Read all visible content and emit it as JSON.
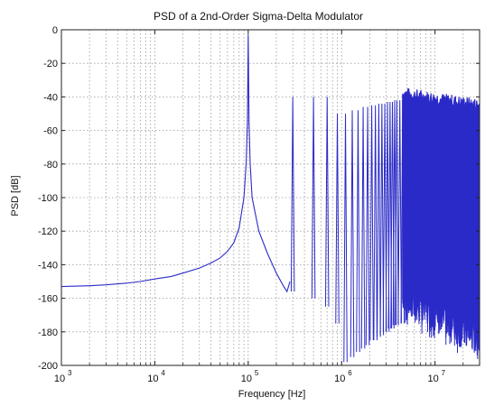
{
  "chart_data": {
    "type": "line",
    "title": "PSD of a 2nd-Order Sigma-Delta Modulator",
    "xlabel": "Frequency [Hz]",
    "ylabel": "PSD [dB]",
    "xscale": "log",
    "xlim": [
      1000,
      30000000
    ],
    "ylim": [
      -200,
      0
    ],
    "grid": true,
    "grid_style": "dotted",
    "legend": "none",
    "line_color": "#2b2bc8",
    "x_ticks": [
      {
        "value": 1000,
        "base": "10",
        "exp": "3"
      },
      {
        "value": 10000,
        "base": "10",
        "exp": "4"
      },
      {
        "value": 100000,
        "base": "10",
        "exp": "5"
      },
      {
        "value": 1000000,
        "base": "10",
        "exp": "6"
      },
      {
        "value": 10000000,
        "base": "10",
        "exp": "7"
      }
    ],
    "y_ticks": [
      0,
      -20,
      -40,
      -60,
      -80,
      -100,
      -120,
      -140,
      -160,
      -180,
      -200
    ],
    "series": [
      {
        "baseline": [
          [
            1000,
            -153
          ],
          [
            2000,
            -152.5
          ],
          [
            3000,
            -152
          ],
          [
            5000,
            -151
          ],
          [
            7000,
            -150
          ],
          [
            10000,
            -148.5
          ],
          [
            15000,
            -147
          ],
          [
            20000,
            -145
          ],
          [
            30000,
            -142
          ],
          [
            40000,
            -139
          ],
          [
            50000,
            -136
          ],
          [
            60000,
            -132
          ],
          [
            70000,
            -127
          ],
          [
            80000,
            -118
          ],
          [
            90000,
            -100
          ],
          [
            95000,
            -80
          ],
          [
            98000,
            -55
          ],
          [
            100000,
            -3
          ],
          [
            102000,
            -55
          ],
          [
            105000,
            -80
          ],
          [
            110000,
            -100
          ],
          [
            130000,
            -120
          ],
          [
            160000,
            -133
          ],
          [
            200000,
            -145
          ],
          [
            240000,
            -153
          ],
          [
            260000,
            -156
          ],
          [
            280000,
            -150
          ]
        ],
        "tones_x": [
          300000,
          500000,
          700000,
          900000,
          1100000,
          1300000,
          1500000,
          1700000,
          1900000,
          2100000,
          2300000,
          2500000,
          2700000,
          2900000,
          3100000,
          3300000,
          3500000,
          3700000,
          3900000,
          4200000,
          4500000
        ],
        "tones_peak": [
          -40,
          -40,
          -40,
          -50,
          -50,
          -48,
          -48,
          -46,
          -46,
          -45,
          -45,
          -44,
          -44,
          -44,
          -43,
          -43,
          -43,
          -42,
          -42,
          -42,
          -42
        ],
        "tones_floor": [
          -156,
          -160,
          -165,
          -175,
          -198,
          -195,
          -192,
          -190,
          -188,
          -185,
          -185,
          -183,
          -182,
          -180,
          -180,
          -178,
          -178,
          -176,
          -176,
          -175,
          -175
        ],
        "noise_band": {
          "x_start": 4500000,
          "x_end": 30000000,
          "upper": [
            -38,
            -45
          ],
          "lower": [
            -160,
            -185
          ]
        }
      }
    ]
  }
}
